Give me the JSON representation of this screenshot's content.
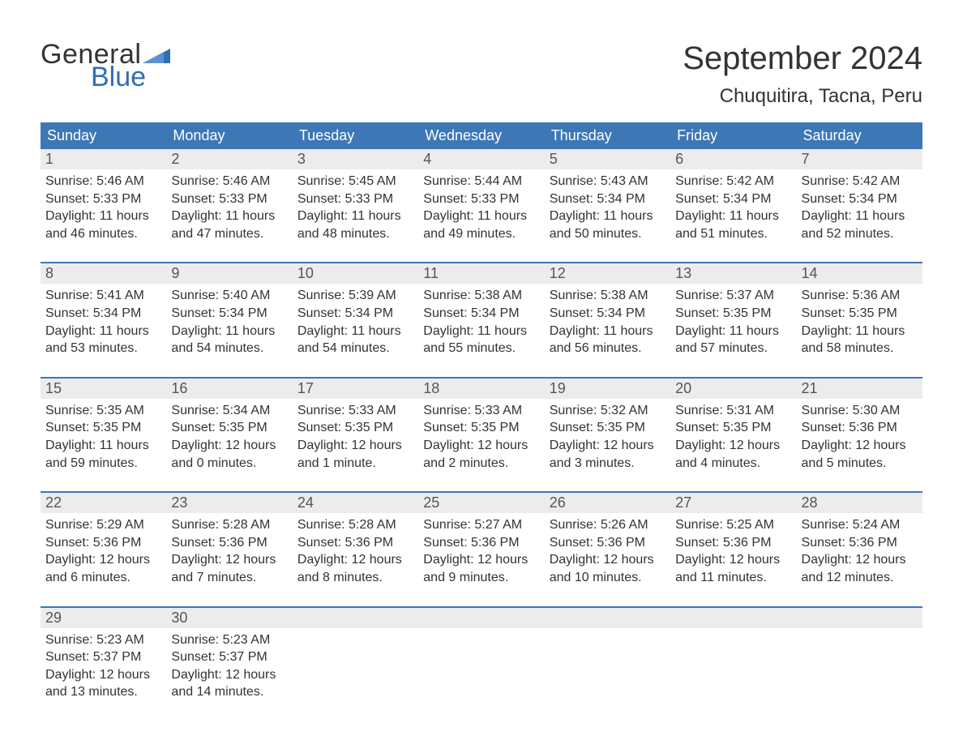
{
  "brand": {
    "word1": "General",
    "word2": "Blue",
    "flag_color": "#2f6fb3"
  },
  "title": "September 2024",
  "location": "Chuquitira, Tacna, Peru",
  "colors": {
    "header_bg": "#3d77b6",
    "header_text": "#ffffff",
    "daynum_bg": "#ececec",
    "week_border": "#3d77b6",
    "body_text": "#333333",
    "logo_blue": "#2f6fb3"
  },
  "typography": {
    "title_fontsize": 40,
    "location_fontsize": 24,
    "dow_fontsize": 18,
    "daynum_fontsize": 18,
    "body_fontsize": 16
  },
  "days_of_week": [
    "Sunday",
    "Monday",
    "Tuesday",
    "Wednesday",
    "Thursday",
    "Friday",
    "Saturday"
  ],
  "weeks": [
    [
      {
        "n": "1",
        "sunrise": "Sunrise: 5:46 AM",
        "sunset": "Sunset: 5:33 PM",
        "day1": "Daylight: 11 hours",
        "day2": "and 46 minutes."
      },
      {
        "n": "2",
        "sunrise": "Sunrise: 5:46 AM",
        "sunset": "Sunset: 5:33 PM",
        "day1": "Daylight: 11 hours",
        "day2": "and 47 minutes."
      },
      {
        "n": "3",
        "sunrise": "Sunrise: 5:45 AM",
        "sunset": "Sunset: 5:33 PM",
        "day1": "Daylight: 11 hours",
        "day2": "and 48 minutes."
      },
      {
        "n": "4",
        "sunrise": "Sunrise: 5:44 AM",
        "sunset": "Sunset: 5:33 PM",
        "day1": "Daylight: 11 hours",
        "day2": "and 49 minutes."
      },
      {
        "n": "5",
        "sunrise": "Sunrise: 5:43 AM",
        "sunset": "Sunset: 5:34 PM",
        "day1": "Daylight: 11 hours",
        "day2": "and 50 minutes."
      },
      {
        "n": "6",
        "sunrise": "Sunrise: 5:42 AM",
        "sunset": "Sunset: 5:34 PM",
        "day1": "Daylight: 11 hours",
        "day2": "and 51 minutes."
      },
      {
        "n": "7",
        "sunrise": "Sunrise: 5:42 AM",
        "sunset": "Sunset: 5:34 PM",
        "day1": "Daylight: 11 hours",
        "day2": "and 52 minutes."
      }
    ],
    [
      {
        "n": "8",
        "sunrise": "Sunrise: 5:41 AM",
        "sunset": "Sunset: 5:34 PM",
        "day1": "Daylight: 11 hours",
        "day2": "and 53 minutes."
      },
      {
        "n": "9",
        "sunrise": "Sunrise: 5:40 AM",
        "sunset": "Sunset: 5:34 PM",
        "day1": "Daylight: 11 hours",
        "day2": "and 54 minutes."
      },
      {
        "n": "10",
        "sunrise": "Sunrise: 5:39 AM",
        "sunset": "Sunset: 5:34 PM",
        "day1": "Daylight: 11 hours",
        "day2": "and 54 minutes."
      },
      {
        "n": "11",
        "sunrise": "Sunrise: 5:38 AM",
        "sunset": "Sunset: 5:34 PM",
        "day1": "Daylight: 11 hours",
        "day2": "and 55 minutes."
      },
      {
        "n": "12",
        "sunrise": "Sunrise: 5:38 AM",
        "sunset": "Sunset: 5:34 PM",
        "day1": "Daylight: 11 hours",
        "day2": "and 56 minutes."
      },
      {
        "n": "13",
        "sunrise": "Sunrise: 5:37 AM",
        "sunset": "Sunset: 5:35 PM",
        "day1": "Daylight: 11 hours",
        "day2": "and 57 minutes."
      },
      {
        "n": "14",
        "sunrise": "Sunrise: 5:36 AM",
        "sunset": "Sunset: 5:35 PM",
        "day1": "Daylight: 11 hours",
        "day2": "and 58 minutes."
      }
    ],
    [
      {
        "n": "15",
        "sunrise": "Sunrise: 5:35 AM",
        "sunset": "Sunset: 5:35 PM",
        "day1": "Daylight: 11 hours",
        "day2": "and 59 minutes."
      },
      {
        "n": "16",
        "sunrise": "Sunrise: 5:34 AM",
        "sunset": "Sunset: 5:35 PM",
        "day1": "Daylight: 12 hours",
        "day2": "and 0 minutes."
      },
      {
        "n": "17",
        "sunrise": "Sunrise: 5:33 AM",
        "sunset": "Sunset: 5:35 PM",
        "day1": "Daylight: 12 hours",
        "day2": "and 1 minute."
      },
      {
        "n": "18",
        "sunrise": "Sunrise: 5:33 AM",
        "sunset": "Sunset: 5:35 PM",
        "day1": "Daylight: 12 hours",
        "day2": "and 2 minutes."
      },
      {
        "n": "19",
        "sunrise": "Sunrise: 5:32 AM",
        "sunset": "Sunset: 5:35 PM",
        "day1": "Daylight: 12 hours",
        "day2": "and 3 minutes."
      },
      {
        "n": "20",
        "sunrise": "Sunrise: 5:31 AM",
        "sunset": "Sunset: 5:35 PM",
        "day1": "Daylight: 12 hours",
        "day2": "and 4 minutes."
      },
      {
        "n": "21",
        "sunrise": "Sunrise: 5:30 AM",
        "sunset": "Sunset: 5:36 PM",
        "day1": "Daylight: 12 hours",
        "day2": "and 5 minutes."
      }
    ],
    [
      {
        "n": "22",
        "sunrise": "Sunrise: 5:29 AM",
        "sunset": "Sunset: 5:36 PM",
        "day1": "Daylight: 12 hours",
        "day2": "and 6 minutes."
      },
      {
        "n": "23",
        "sunrise": "Sunrise: 5:28 AM",
        "sunset": "Sunset: 5:36 PM",
        "day1": "Daylight: 12 hours",
        "day2": "and 7 minutes."
      },
      {
        "n": "24",
        "sunrise": "Sunrise: 5:28 AM",
        "sunset": "Sunset: 5:36 PM",
        "day1": "Daylight: 12 hours",
        "day2": "and 8 minutes."
      },
      {
        "n": "25",
        "sunrise": "Sunrise: 5:27 AM",
        "sunset": "Sunset: 5:36 PM",
        "day1": "Daylight: 12 hours",
        "day2": "and 9 minutes."
      },
      {
        "n": "26",
        "sunrise": "Sunrise: 5:26 AM",
        "sunset": "Sunset: 5:36 PM",
        "day1": "Daylight: 12 hours",
        "day2": "and 10 minutes."
      },
      {
        "n": "27",
        "sunrise": "Sunrise: 5:25 AM",
        "sunset": "Sunset: 5:36 PM",
        "day1": "Daylight: 12 hours",
        "day2": "and 11 minutes."
      },
      {
        "n": "28",
        "sunrise": "Sunrise: 5:24 AM",
        "sunset": "Sunset: 5:36 PM",
        "day1": "Daylight: 12 hours",
        "day2": "and 12 minutes."
      }
    ],
    [
      {
        "n": "29",
        "sunrise": "Sunrise: 5:23 AM",
        "sunset": "Sunset: 5:37 PM",
        "day1": "Daylight: 12 hours",
        "day2": "and 13 minutes."
      },
      {
        "n": "30",
        "sunrise": "Sunrise: 5:23 AM",
        "sunset": "Sunset: 5:37 PM",
        "day1": "Daylight: 12 hours",
        "day2": "and 14 minutes."
      },
      {
        "n": "",
        "sunrise": "",
        "sunset": "",
        "day1": "",
        "day2": ""
      },
      {
        "n": "",
        "sunrise": "",
        "sunset": "",
        "day1": "",
        "day2": ""
      },
      {
        "n": "",
        "sunrise": "",
        "sunset": "",
        "day1": "",
        "day2": ""
      },
      {
        "n": "",
        "sunrise": "",
        "sunset": "",
        "day1": "",
        "day2": ""
      },
      {
        "n": "",
        "sunrise": "",
        "sunset": "",
        "day1": "",
        "day2": ""
      }
    ]
  ]
}
